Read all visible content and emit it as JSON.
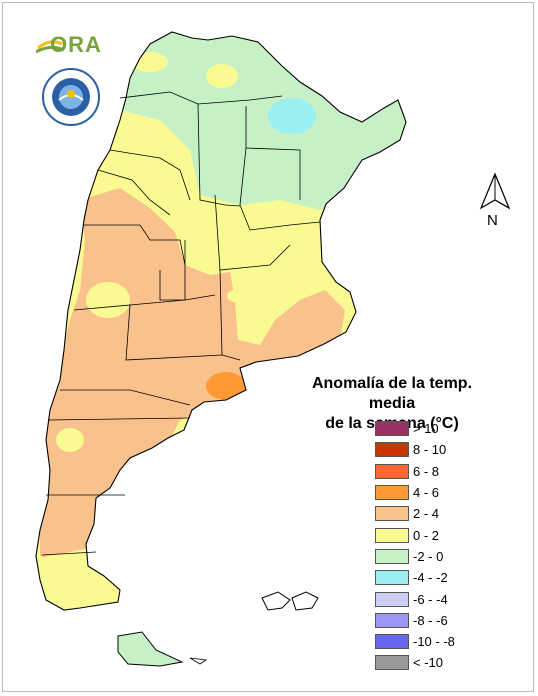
{
  "logo_text": "ORA",
  "logo_seal_text": "SERVICIO METEOROLOGICO NACIONAL ARGENTINA",
  "north_arrow_label": "N",
  "legend": {
    "title_line1": "Anomalía de la temp. media",
    "title_line2": "de la semana (°C)",
    "items": [
      {
        "label": "> 10",
        "color": "#993366"
      },
      {
        "label": "8 - 10",
        "color": "#cc3300"
      },
      {
        "label": "6 - 8",
        "color": "#ff6633"
      },
      {
        "label": "4 - 6",
        "color": "#ff9933"
      },
      {
        "label": "2 - 4",
        "color": "#f9c28d"
      },
      {
        "label": "0 - 2",
        "color": "#fafa92"
      },
      {
        "label": "-2 - 0",
        "color": "#c6f0c6"
      },
      {
        "label": "-4 - -2",
        "color": "#9af0f0"
      },
      {
        "label": "-6 - -4",
        "color": "#ccccf5"
      },
      {
        "label": "-8 - -6",
        "color": "#9999f5"
      },
      {
        "label": "-10 - -8",
        "color": "#6666ee"
      },
      {
        "label": "< -10",
        "color": "#999999"
      }
    ]
  },
  "colors": {
    "border": "#000000",
    "logo_green": "#7aa33e",
    "logo_yellow": "#f2c200",
    "seal_blue": "#2b5fa6"
  }
}
